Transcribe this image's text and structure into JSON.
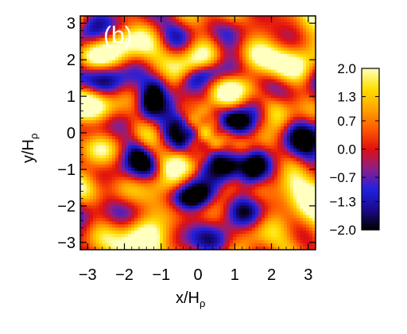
{
  "chart_data": {
    "type": "heatmap",
    "panel_label": "(b)",
    "xlabel": "x/H",
    "xlabel_sub": "ρ",
    "ylabel": "y/H",
    "ylabel_sub": "ρ",
    "xlim": [
      -3.2,
      3.2
    ],
    "ylim": [
      -3.2,
      3.2
    ],
    "x_ticks": [
      -3,
      -2,
      -1,
      0,
      1,
      2,
      3
    ],
    "y_ticks": [
      -3,
      -2,
      -1,
      0,
      1,
      2,
      3
    ],
    "x_tick_labels": [
      "−3",
      "−2",
      "−1",
      "0",
      "1",
      "2",
      "3"
    ],
    "y_tick_labels": [
      "−3",
      "−2",
      "−1",
      "0",
      "1",
      "2",
      "3"
    ],
    "colorbar": {
      "min": -2.0,
      "max": 2.0,
      "tick_values": [
        2.0,
        1.3,
        0.7,
        0.0,
        -0.7,
        -1.3,
        -2.0
      ],
      "tick_labels": [
        "2.0",
        "1.3",
        "0.7",
        "0.0",
        "−0.7",
        "−1.3",
        "−2.0"
      ]
    },
    "colormap": [
      "#000000",
      "#1a0a8c",
      "#2020e0",
      "#8a1f8a",
      "#e01010",
      "#ff5a00",
      "#ffa500",
      "#ffe000",
      "#ffffc0"
    ],
    "grid": false
  }
}
